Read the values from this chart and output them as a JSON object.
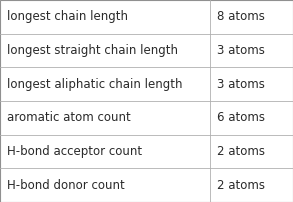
{
  "rows": [
    {
      "label": "longest chain length",
      "value": "8 atoms"
    },
    {
      "label": "longest straight chain length",
      "value": "3 atoms"
    },
    {
      "label": "longest aliphatic chain length",
      "value": "3 atoms"
    },
    {
      "label": "aromatic atom count",
      "value": "6 atoms"
    },
    {
      "label": "H-bond acceptor count",
      "value": "2 atoms"
    },
    {
      "label": "H-bond donor count",
      "value": "2 atoms"
    }
  ],
  "col_split": 0.717,
  "background_color": "#ffffff",
  "border_color": "#b0b0b0",
  "text_color": "#2a2a2a",
  "font_size": 8.5,
  "outer_border_color": "#909090"
}
